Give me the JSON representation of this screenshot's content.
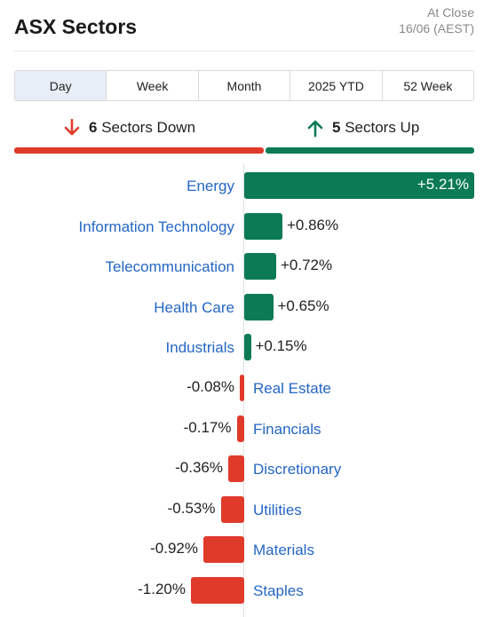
{
  "header": {
    "title": "ASX Sectors",
    "close_label": "At Close",
    "close_date": "16/06 (AEST)"
  },
  "tabs": [
    {
      "label": "Day",
      "active": true
    },
    {
      "label": "Week",
      "active": false
    },
    {
      "label": "Month",
      "active": false
    },
    {
      "label": "2025 YTD",
      "active": false
    },
    {
      "label": "52 Week",
      "active": false
    }
  ],
  "summary": {
    "down_count": "6",
    "down_text": "Sectors Down",
    "up_count": "5",
    "up_text": "Sectors Up"
  },
  "colors": {
    "up": "#0b7a55",
    "down": "#e03a2b",
    "link": "#2466c4"
  },
  "chart_data": {
    "type": "bar",
    "orientation": "horizontal-diverging",
    "categories": [
      "Energy",
      "Information Technology",
      "Telecommunication",
      "Health Care",
      "Industrials",
      "Real Estate",
      "Financials",
      "Discretionary",
      "Utilities",
      "Materials",
      "Staples"
    ],
    "values": [
      5.21,
      0.86,
      0.72,
      0.65,
      0.15,
      -0.08,
      -0.17,
      -0.36,
      -0.53,
      -0.92,
      -1.2
    ],
    "labels": [
      "+5.21%",
      "+0.86%",
      "+0.72%",
      "+0.65%",
      "+0.15%",
      "-0.08%",
      "-0.17%",
      "-0.36%",
      "-0.53%",
      "-0.92%",
      "-1.20%"
    ],
    "unit": "%"
  }
}
